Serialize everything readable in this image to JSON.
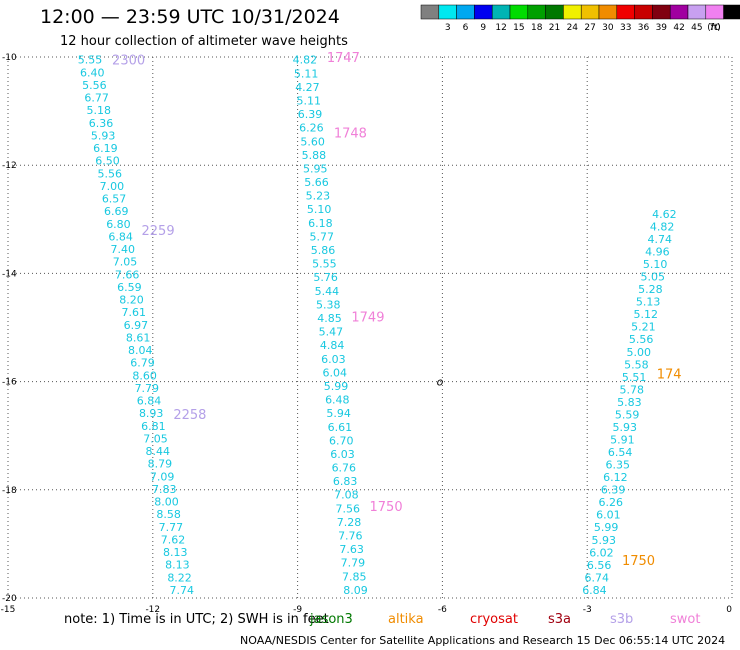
{
  "title": "12:00 — 23:59 UTC 10/31/2024",
  "subtitle": "12 hour collection of altimeter wave heights",
  "note": "note:  1) Time is in UTC; 2) SWH is in feet",
  "credit": "NOAA/NESDIS Center for Satellite Applications and Research    15 Dec 06:55:14 UTC 2024",
  "colors": {
    "teal": "#18c8e0",
    "s3b": "#b4a0e8",
    "swot": "#f080d8",
    "altika": "#f08c00",
    "jason": "#007800",
    "cryosat": "#e00000",
    "s3a": "#a00010"
  },
  "colorbar": {
    "unit": "(ft)",
    "labels": [
      "3",
      "6",
      "9",
      "12",
      "15",
      "18",
      "21",
      "24",
      "27",
      "30",
      "33",
      "36",
      "39",
      "42",
      "45",
      "70"
    ],
    "colors": [
      "#808080",
      "#00e8f0",
      "#00a8f0",
      "#0000f0",
      "#00b4b4",
      "#00dc00",
      "#00a000",
      "#007800",
      "#f0f000",
      "#f0c000",
      "#f08c00",
      "#f00000",
      "#c80000",
      "#800010",
      "#a000a0",
      "#c8a0f0",
      "#f080f0",
      "#000000"
    ]
  },
  "legend": [
    {
      "name": "jason3",
      "color": "#007800"
    },
    {
      "name": "altika",
      "color": "#f08c00"
    },
    {
      "name": "cryosat",
      "color": "#e00000"
    },
    {
      "name": "s3a",
      "color": "#a00010"
    },
    {
      "name": "s3b",
      "color": "#b4a0e8"
    },
    {
      "name": "swot",
      "color": "#f080d8"
    }
  ],
  "marker": "o",
  "chart_data": {
    "type": "scatter",
    "xlim": [
      -15,
      0
    ],
    "ylim": [
      -20,
      -10
    ],
    "xticks": [
      "-15",
      "-12",
      "-9",
      "-6",
      "-3",
      "0"
    ],
    "yticks": [
      "-10",
      "-12",
      "-14",
      "-16",
      "-18",
      "-20"
    ],
    "xtick_values": [
      -15,
      -12,
      -9,
      -6,
      -3,
      0
    ],
    "ytick_values": [
      -10,
      -12,
      -14,
      -16,
      -18,
      -20
    ],
    "grid": true,
    "marker_point": [
      -6.05,
      -16.0
    ],
    "tracks": [
      {
        "name": "track-1",
        "x0": -13.3,
        "x1": -11.4,
        "y0": -10.05,
        "y1": -19.85,
        "values": [
          "5.55",
          "6.40",
          "5.56",
          "6.77",
          "5.18",
          "6.36",
          "5.93",
          "6.19",
          "6.50",
          "5.56",
          "7.00",
          "6.57",
          "6.69",
          "6.80",
          "6.84",
          "7.40",
          "7.05",
          "7.66",
          "6.59",
          "8.20",
          "7.61",
          "6.97",
          "8.61",
          "8.04",
          "6.79",
          "8.60",
          "7.79",
          "6.84",
          "8.93",
          "6.81",
          "7.05",
          "8.44",
          "8.79",
          "7.09",
          "7.83",
          "8.00",
          "8.58",
          "7.77",
          "7.62",
          "8.13",
          "8.13",
          "8.22",
          "7.74"
        ],
        "times": [
          {
            "text": "2300",
            "y": -10.05,
            "color": "#b4a0e8"
          },
          {
            "text": "2259",
            "y": -13.2,
            "color": "#b4a0e8"
          },
          {
            "text": "2258",
            "y": -16.6,
            "color": "#b4a0e8"
          }
        ]
      },
      {
        "name": "track-2",
        "x0": -8.85,
        "x1": -7.8,
        "y0": -10.05,
        "y1": -19.85,
        "values": [
          "4.82",
          "5.11",
          "4.27",
          "5.11",
          "6.39",
          "6.26",
          "5.60",
          "5.88",
          "5.95",
          "5.66",
          "5.23",
          "5.10",
          "6.18",
          "5.77",
          "5.86",
          "5.55",
          "5.76",
          "5.44",
          "5.38",
          "4.85",
          "5.47",
          "4.84",
          "6.03",
          "6.04",
          "5.99",
          "6.48",
          "5.94",
          "6.61",
          "6.70",
          "6.03",
          "6.76",
          "6.83",
          "7.08",
          "7.56",
          "7.28",
          "7.76",
          "7.63",
          "7.79",
          "7.85",
          "8.09"
        ],
        "times": [
          {
            "text": "1747",
            "y": -10.0,
            "color": "#f080d8"
          },
          {
            "text": "1748",
            "y": -11.4,
            "color": "#f080d8"
          },
          {
            "text": "1749",
            "y": -14.8,
            "color": "#f080d8"
          },
          {
            "text": "1750",
            "y": -18.3,
            "color": "#f080d8"
          }
        ]
      },
      {
        "name": "track-3",
        "x0": -1.4,
        "x1": -2.85,
        "y0": -12.9,
        "y1": -19.85,
        "values": [
          "4.62",
          "4.82",
          "4.74",
          "4.96",
          "5.10",
          "5.05",
          "5.28",
          "5.13",
          "5.12",
          "5.21",
          "5.56",
          "5.00",
          "5.58",
          "5.51",
          "5.78",
          "5.83",
          "5.59",
          "5.93",
          "5.91",
          "6.54",
          "6.35",
          "6.12",
          "6.39",
          "6.26",
          "6.01",
          "5.99",
          "5.93",
          "6.02",
          "6.56",
          "6.74",
          "6.84"
        ],
        "times": [
          {
            "text": "1750",
            "y": -19.3,
            "color": "#f08c00"
          },
          {
            "text": "174",
            "y": -15.85,
            "color": "#f08c00"
          }
        ]
      }
    ]
  }
}
